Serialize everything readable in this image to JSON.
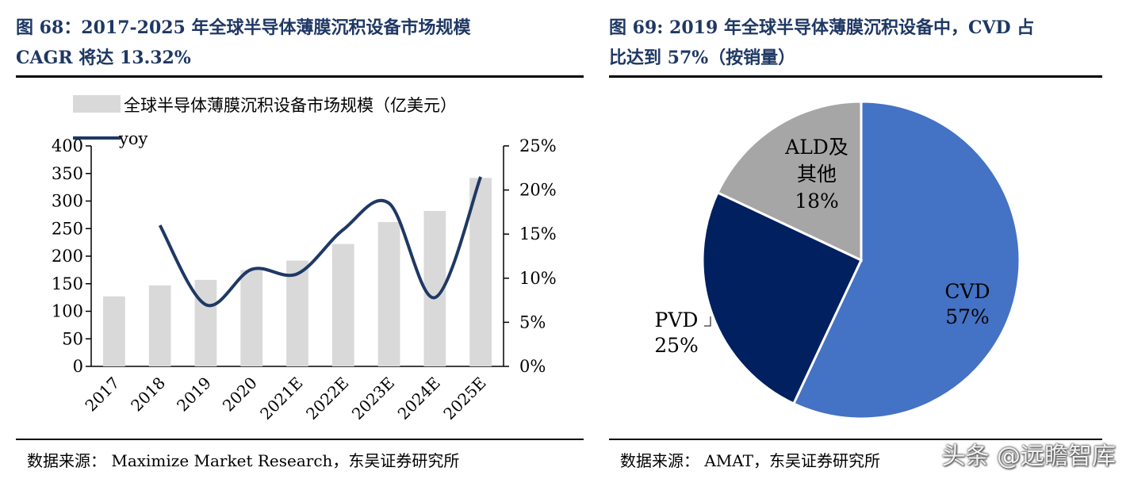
{
  "left": {
    "title_line1": "图 68：2017-2025 年全球半导体薄膜沉积设备市场规模",
    "title_line2": "CAGR 将达 13.32%",
    "source": "数据来源：  Maximize Market Research，东吴证券研究所"
  },
  "right": {
    "title_line1": "图 69: 2019 年全球半导体薄膜沉积设备中，CVD 占",
    "title_line2": "比达到 57%（按销量）",
    "source": "数据来源：  AMAT，东吴证券研究所"
  },
  "watermark": "头条 @远瞻智库",
  "colors": {
    "title": "#1f3864",
    "bar": "#d9d9d9",
    "line": "#1f3864",
    "cvd": "#4472c4",
    "pvd": "#002060",
    "ald": "#a6a6a6"
  },
  "chart_data": [
    {
      "type": "bar",
      "categories": [
        "2017",
        "2018",
        "2019",
        "2020",
        "2021E",
        "2022E",
        "2023E",
        "2024E",
        "2025E"
      ],
      "series": [
        {
          "name": "全球半导体薄膜沉积设备市场规模（亿美元）",
          "type": "bar",
          "axis": "left",
          "values": [
            127,
            147,
            157,
            175,
            192,
            222,
            262,
            282,
            342
          ]
        },
        {
          "name": "yoy",
          "type": "line",
          "axis": "right",
          "values": [
            null,
            16.0,
            7.0,
            11.0,
            10.5,
            15.5,
            18.5,
            7.8,
            21.5
          ]
        }
      ],
      "ylim": [
        0,
        400
      ],
      "yticks": [
        "0",
        "50",
        "100",
        "150",
        "200",
        "250",
        "300",
        "350",
        "400"
      ],
      "y2lim": [
        0,
        25
      ],
      "y2ticks": [
        "0%",
        "5%",
        "10%",
        "15%",
        "20%",
        "25%"
      ],
      "legend_position": "top",
      "grid": false
    },
    {
      "type": "pie",
      "slices": [
        {
          "label": "CVD",
          "value": 57,
          "pct_label": "57%"
        },
        {
          "label": "PVD",
          "value": 25,
          "pct_label": "25%"
        },
        {
          "label_line1": "ALD及",
          "label_line2": "其他",
          "value": 18,
          "pct_label": "18%"
        }
      ]
    }
  ]
}
